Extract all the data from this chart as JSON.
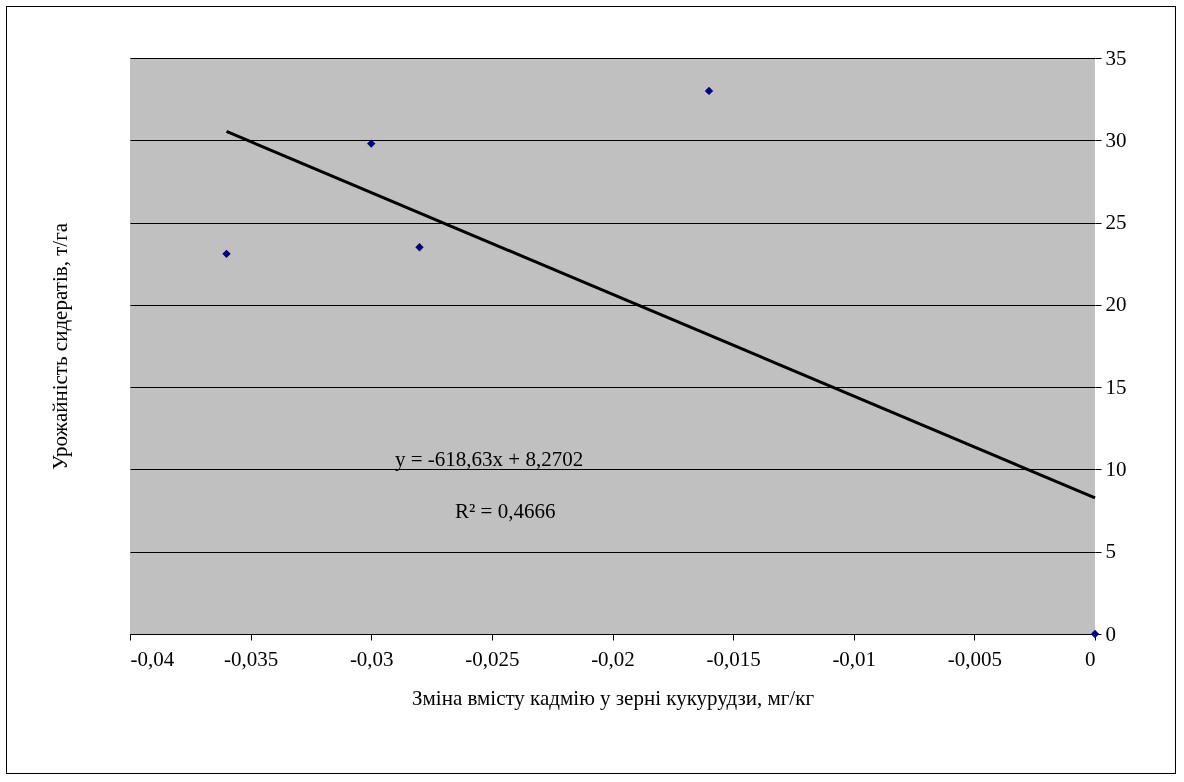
{
  "chart_data": {
    "type": "scatter",
    "xlabel": "Зміна вмісту кадмію у зерні кукурудзи, мг/кг",
    "ylabel": "Урожайність сидератів, т/га",
    "xlim": [
      -0.04,
      0
    ],
    "xticks": [
      {
        "value": -0.04,
        "label": "-0,04"
      },
      {
        "value": -0.035,
        "label": "-0,035"
      },
      {
        "value": -0.03,
        "label": "-0,03"
      },
      {
        "value": -0.025,
        "label": "-0,025"
      },
      {
        "value": -0.02,
        "label": "-0,02"
      },
      {
        "value": -0.015,
        "label": "-0,015"
      },
      {
        "value": -0.01,
        "label": "-0,01"
      },
      {
        "value": -0.005,
        "label": "-0,005"
      },
      0
    ],
    "ylim": [
      0,
      35
    ],
    "yticks": [
      0,
      5,
      10,
      15,
      20,
      25,
      30,
      35
    ],
    "grid": "y",
    "legend": false,
    "annotations": [
      "y = -618,63x + 8,2702",
      "R² = 0,4666"
    ],
    "series": [
      {
        "color": "#000080",
        "marker": "diamond",
        "x": [
          -0.036,
          -0.03,
          -0.028,
          -0.016,
          0
        ],
        "values": [
          23.1,
          29.8,
          23.5,
          33.0,
          0
        ]
      },
      {
        "type": "line",
        "color": "#000000",
        "marker": "none",
        "x": [
          -0.036,
          0
        ],
        "values": [
          30.54,
          8.27
        ]
      }
    ]
  }
}
